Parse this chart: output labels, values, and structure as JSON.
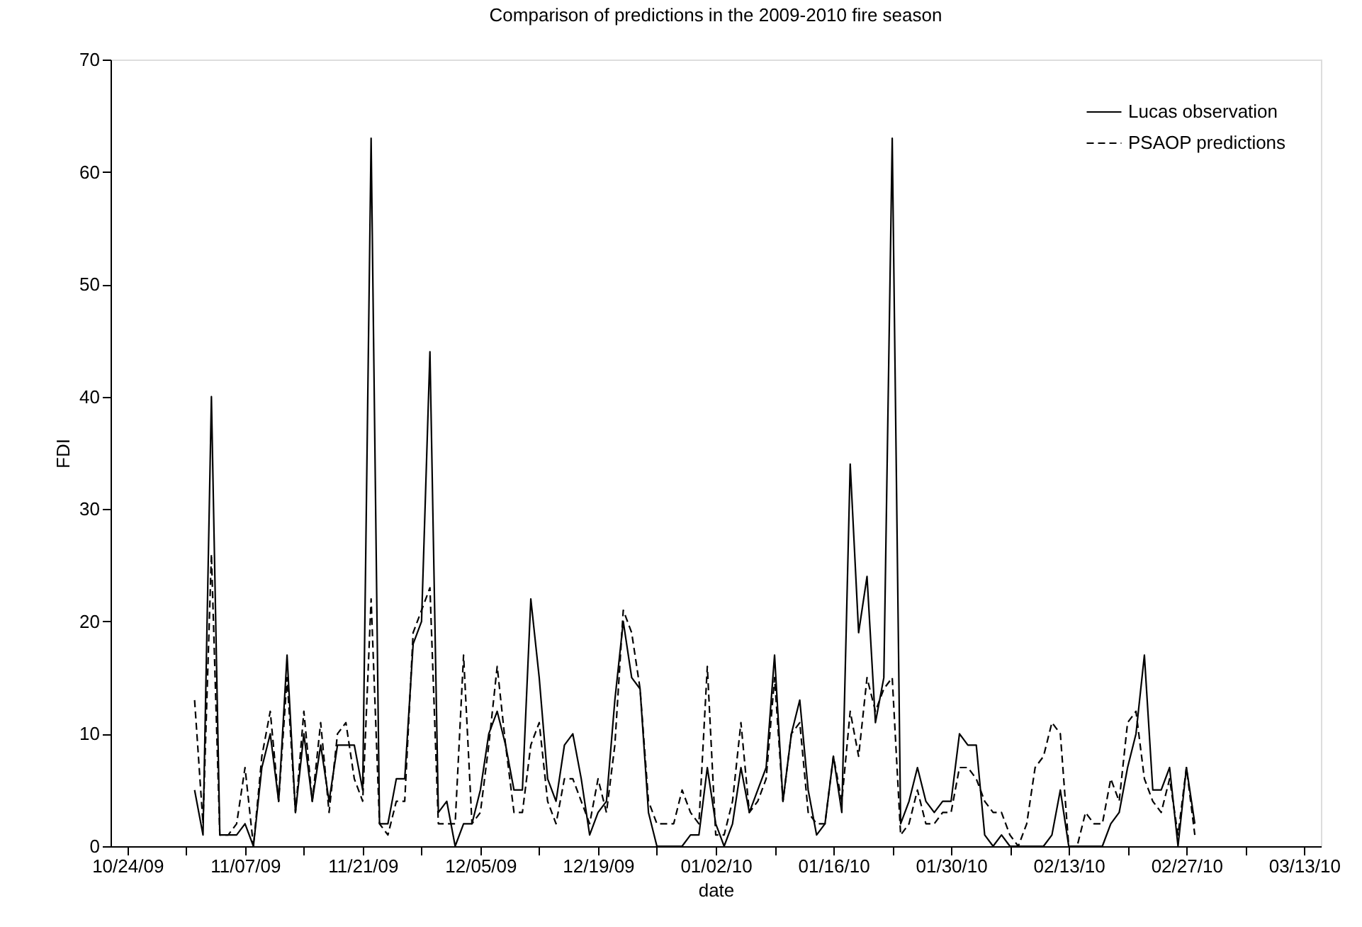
{
  "chart_data": {
    "type": "line",
    "title": "Comparison of predictions in the 2009-2010 fire season",
    "xlabel": "date",
    "ylabel": "FDI",
    "x": [
      "2009-11-01",
      "2009-11-02",
      "2009-11-03",
      "2009-11-04",
      "2009-11-05",
      "2009-11-06",
      "2009-11-07",
      "2009-11-08",
      "2009-11-09",
      "2009-11-10",
      "2009-11-11",
      "2009-11-12",
      "2009-11-13",
      "2009-11-14",
      "2009-11-15",
      "2009-11-16",
      "2009-11-17",
      "2009-11-18",
      "2009-11-19",
      "2009-11-20",
      "2009-11-21",
      "2009-11-22",
      "2009-11-23",
      "2009-11-24",
      "2009-11-25",
      "2009-11-26",
      "2009-11-27",
      "2009-11-28",
      "2009-11-29",
      "2009-11-30",
      "2009-12-01",
      "2009-12-02",
      "2009-12-03",
      "2009-12-04",
      "2009-12-05",
      "2009-12-06",
      "2009-12-07",
      "2009-12-08",
      "2009-12-09",
      "2009-12-10",
      "2009-12-11",
      "2009-12-12",
      "2009-12-13",
      "2009-12-14",
      "2009-12-15",
      "2009-12-16",
      "2009-12-17",
      "2009-12-18",
      "2009-12-19",
      "2009-12-20",
      "2009-12-21",
      "2009-12-22",
      "2009-12-23",
      "2009-12-24",
      "2009-12-25",
      "2009-12-26",
      "2009-12-27",
      "2009-12-28",
      "2009-12-29",
      "2009-12-30",
      "2009-12-31",
      "2010-01-01",
      "2010-01-02",
      "2010-01-03",
      "2010-01-04",
      "2010-01-05",
      "2010-01-06",
      "2010-01-07",
      "2010-01-08",
      "2010-01-09",
      "2010-01-10",
      "2010-01-11",
      "2010-01-12",
      "2010-01-13",
      "2010-01-14",
      "2010-01-15",
      "2010-01-16",
      "2010-01-17",
      "2010-01-18",
      "2010-01-19",
      "2010-01-20",
      "2010-01-21",
      "2010-01-22",
      "2010-01-23",
      "2010-01-24",
      "2010-01-25",
      "2010-01-26",
      "2010-01-27",
      "2010-01-28",
      "2010-01-29",
      "2010-01-30",
      "2010-01-31",
      "2010-02-01",
      "2010-02-02",
      "2010-02-03",
      "2010-02-04",
      "2010-02-05",
      "2010-02-06",
      "2010-02-07",
      "2010-02-08",
      "2010-02-09",
      "2010-02-10",
      "2010-02-11",
      "2010-02-12",
      "2010-02-13",
      "2010-02-14",
      "2010-02-15",
      "2010-02-16",
      "2010-02-17",
      "2010-02-18",
      "2010-02-19",
      "2010-02-20",
      "2010-02-21",
      "2010-02-22",
      "2010-02-23",
      "2010-02-24",
      "2010-02-25",
      "2010-02-26",
      "2010-02-27",
      "2010-02-28"
    ],
    "series": [
      {
        "name": "Lucas observation",
        "color": "#000000",
        "line_style": "solid",
        "values": [
          5,
          1,
          40,
          1,
          1,
          1,
          2,
          0,
          7,
          10,
          4,
          17,
          3,
          10,
          4,
          9,
          4,
          9,
          9,
          9,
          5,
          63,
          2,
          2,
          6,
          6,
          18,
          20,
          44,
          3,
          4,
          0,
          2,
          2,
          5,
          10,
          12,
          9,
          5,
          5,
          22,
          15,
          6,
          4,
          9,
          10,
          6,
          1,
          3,
          4,
          13,
          20,
          15,
          14,
          3,
          0,
          0,
          0,
          0,
          1,
          1,
          7,
          2,
          0,
          2,
          7,
          3,
          5,
          7,
          17,
          4,
          10,
          13,
          5,
          1,
          2,
          8,
          3,
          34,
          19,
          24,
          11,
          15,
          63,
          2,
          4,
          7,
          4,
          3,
          4,
          4,
          10,
          9,
          9,
          1,
          0,
          1,
          0,
          0,
          0,
          0,
          0,
          1,
          5,
          0,
          0,
          0,
          0,
          0,
          2,
          3,
          7,
          10,
          17,
          5,
          5,
          7,
          0,
          7,
          2
        ]
      },
      {
        "name": "PSAOP predictions",
        "color": "#000000",
        "line_style": "dashed",
        "values": [
          13,
          2,
          26,
          1,
          1,
          2,
          7,
          0,
          8,
          12,
          4,
          15,
          3,
          12,
          4,
          11,
          3,
          10,
          11,
          6,
          4,
          22,
          2,
          1,
          4,
          4,
          19,
          21,
          23,
          2,
          2,
          2,
          17,
          2,
          3,
          9,
          16,
          9,
          3,
          3,
          9,
          11,
          4,
          2,
          6,
          6,
          4,
          2,
          6,
          3,
          9,
          21,
          19,
          14,
          4,
          2,
          2,
          2,
          5,
          3,
          2,
          16,
          1,
          1,
          4,
          11,
          3,
          4,
          6,
          15,
          4,
          10,
          11,
          3,
          2,
          2,
          8,
          4,
          12,
          8,
          15,
          12,
          14,
          15,
          1,
          2,
          5,
          2,
          2,
          3,
          3,
          7,
          7,
          6,
          4,
          3,
          3,
          1,
          0,
          2,
          7,
          8,
          11,
          10,
          0,
          0,
          3,
          2,
          2,
          6,
          4,
          11,
          12,
          6,
          4,
          3,
          6,
          1,
          7,
          1
        ]
      }
    ],
    "xlim": [
      "2009-10-22",
      "2010-03-15"
    ],
    "xticks": [
      {
        "value": "2009-10-24",
        "label": "10/24/09"
      },
      {
        "value": "2009-10-31",
        "label": null
      },
      {
        "value": "2009-11-07",
        "label": "11/07/09"
      },
      {
        "value": "2009-11-14",
        "label": null
      },
      {
        "value": "2009-11-21",
        "label": "11/21/09"
      },
      {
        "value": "2009-11-28",
        "label": null
      },
      {
        "value": "2009-12-05",
        "label": "12/05/09"
      },
      {
        "value": "2009-12-12",
        "label": null
      },
      {
        "value": "2009-12-19",
        "label": "12/19/09"
      },
      {
        "value": "2009-12-26",
        "label": null
      },
      {
        "value": "2010-01-02",
        "label": "01/02/10"
      },
      {
        "value": "2010-01-09",
        "label": null
      },
      {
        "value": "2010-01-16",
        "label": "01/16/10"
      },
      {
        "value": "2010-01-23",
        "label": null
      },
      {
        "value": "2010-01-30",
        "label": "01/30/10"
      },
      {
        "value": "2010-02-06",
        "label": null
      },
      {
        "value": "2010-02-13",
        "label": "02/13/10"
      },
      {
        "value": "2010-02-20",
        "label": null
      },
      {
        "value": "2010-02-27",
        "label": "02/27/10"
      },
      {
        "value": "2010-03-06",
        "label": null
      },
      {
        "value": "2010-03-13",
        "label": "03/13/10"
      }
    ],
    "ylim": [
      0,
      70
    ],
    "yticks": [
      0,
      10,
      20,
      30,
      40,
      50,
      60,
      70
    ],
    "grid": false,
    "legend": "top right",
    "marker": "none"
  }
}
